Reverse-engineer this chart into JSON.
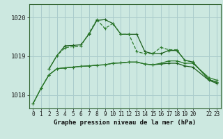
{
  "bg_color": "#cce8e0",
  "grid_color": "#aacccc",
  "spine_color": "#336633",
  "line_color_dark": "#1a5c1a",
  "line_color_mid": "#2a7a2a",
  "title": "Graphe pression niveau de la mer (hPa)",
  "ylim": [
    1017.65,
    1020.35
  ],
  "yticks": [
    1018,
    1019,
    1020
  ],
  "xlim": [
    -0.5,
    23.5
  ],
  "xticks": [
    0,
    1,
    2,
    3,
    4,
    5,
    6,
    7,
    8,
    9,
    10,
    11,
    12,
    13,
    14,
    15,
    16,
    17,
    18,
    19,
    20,
    22,
    23
  ],
  "series1_x": [
    0,
    1,
    2,
    3,
    4,
    5,
    6,
    7,
    8,
    9,
    10,
    11,
    12,
    13,
    14,
    15,
    16,
    17,
    18,
    19,
    20,
    22,
    23
  ],
  "series1_y": [
    1017.77,
    1018.17,
    1018.52,
    1018.68,
    1018.7,
    1018.72,
    1018.74,
    1018.75,
    1018.77,
    1018.78,
    1018.82,
    1018.83,
    1018.85,
    1018.85,
    1018.8,
    1018.78,
    1018.8,
    1018.82,
    1018.82,
    1018.75,
    1018.72,
    1018.38,
    1018.3
  ],
  "series2_x": [
    0,
    1,
    2,
    3,
    4,
    5,
    6,
    7,
    8,
    9,
    10,
    11,
    12,
    13,
    14,
    15,
    16,
    17,
    18,
    19,
    20,
    22,
    23
  ],
  "series2_y": [
    1017.77,
    1018.17,
    1018.52,
    1018.68,
    1018.7,
    1018.72,
    1018.74,
    1018.75,
    1018.77,
    1018.78,
    1018.82,
    1018.83,
    1018.85,
    1018.85,
    1018.8,
    1018.78,
    1018.82,
    1018.88,
    1018.88,
    1018.82,
    1018.82,
    1018.45,
    1018.38
  ],
  "series3_x": [
    2,
    3,
    4,
    5,
    6,
    7,
    8,
    9,
    10,
    11,
    12,
    13,
    14,
    15,
    16,
    17,
    18,
    19,
    20,
    22,
    23
  ],
  "series3_y": [
    1018.67,
    1019.02,
    1019.27,
    1019.28,
    1019.3,
    1019.57,
    1019.93,
    1019.95,
    1019.85,
    1019.57,
    1019.57,
    1019.57,
    1019.12,
    1019.07,
    1019.07,
    1019.15,
    1019.15,
    1018.9,
    1018.85,
    1018.4,
    1018.33
  ],
  "series4_x": [
    2,
    3,
    4,
    5,
    6,
    7,
    8,
    9,
    10,
    11,
    12,
    13,
    14,
    15,
    16,
    17,
    18,
    19,
    20,
    22,
    23
  ],
  "series4_y": [
    1018.67,
    1019.02,
    1019.22,
    1019.25,
    1019.27,
    1019.6,
    1019.95,
    1019.72,
    1019.85,
    1019.57,
    1019.57,
    1019.12,
    1019.07,
    1019.07,
    1019.23,
    1019.17,
    1019.17,
    1018.9,
    1018.85,
    1018.4,
    1018.33
  ]
}
